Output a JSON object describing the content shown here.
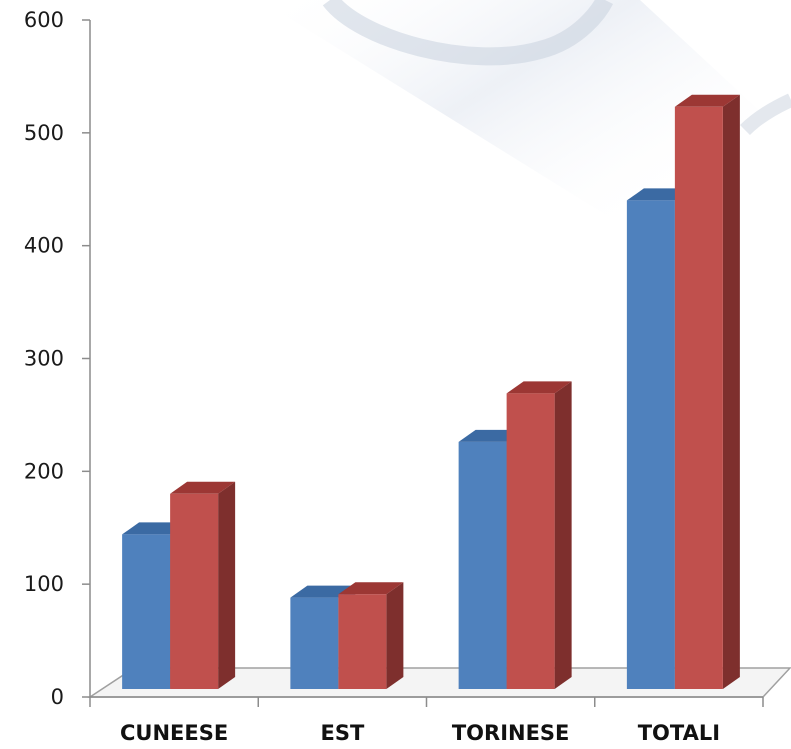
{
  "chart_data": {
    "type": "bar",
    "title": "",
    "xlabel": "",
    "ylabel": "",
    "categories": [
      "CUNEESE",
      "EST",
      "TORINESE",
      "TOTALI"
    ],
    "series": [
      {
        "values": [
          137,
          81,
          219,
          433
        ]
      },
      {
        "values": [
          173,
          84,
          262,
          516
        ]
      }
    ],
    "ylim": [
      0,
      600
    ],
    "yticks": [
      "0",
      "100",
      "200",
      "300",
      "400",
      "500",
      "600"
    ],
    "grid": false,
    "legend": "none",
    "style": "3d-column"
  },
  "colors": {
    "series_1_front": "#4f81bd",
    "series_1_side": "#385d8a",
    "series_1_top": "#3b6aa3",
    "series_2_front": "#c0504d",
    "series_2_side": "#7e2f2d",
    "series_2_top": "#9c3734",
    "axis": "#8c8c8c",
    "floor": "#a0a0a0"
  }
}
